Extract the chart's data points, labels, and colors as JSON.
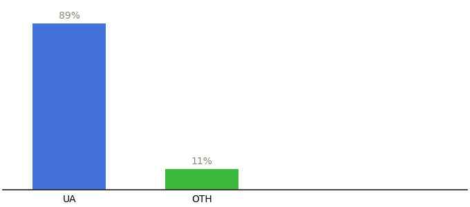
{
  "categories": [
    "UA",
    "OTH"
  ],
  "values": [
    89,
    11
  ],
  "bar_colors": [
    "#4472db",
    "#3cb83c"
  ],
  "bar_labels": [
    "89%",
    "11%"
  ],
  "label_color": "#888877",
  "background_color": "#ffffff",
  "ylim": [
    0,
    100
  ],
  "bar_width": 0.55,
  "x_positions": [
    0.5,
    1.5
  ],
  "xlim": [
    0,
    3.5
  ],
  "xlabel_fontsize": 10,
  "label_fontsize": 10,
  "spine_color": "#222222"
}
